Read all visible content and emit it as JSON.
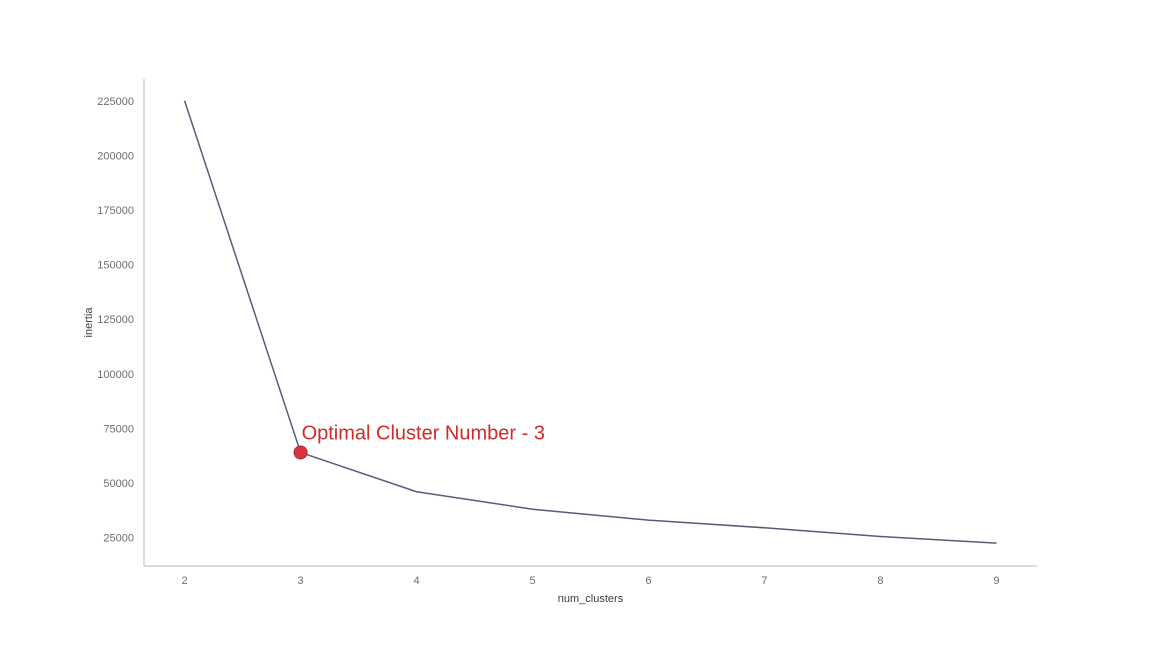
{
  "chart_data": {
    "type": "line",
    "title": "",
    "xlabel": "num_clusters",
    "ylabel": "inertia",
    "x": [
      2,
      3,
      4,
      5,
      6,
      7,
      8,
      9
    ],
    "series": [
      {
        "values": [
          225000,
          64000,
          46000,
          38000,
          33000,
          29500,
          25500,
          22500
        ]
      }
    ],
    "xlim": [
      1.65,
      9.35
    ],
    "ylim": [
      12000,
      235000
    ],
    "xticks": [
      2,
      3,
      4,
      5,
      6,
      7,
      8,
      9
    ],
    "yticks": [
      25000,
      50000,
      75000,
      100000,
      125000,
      150000,
      175000,
      200000,
      225000
    ],
    "grid": false,
    "annotation": {
      "text": "Optimal Cluster Number - 3",
      "x": 3,
      "y": 64000
    },
    "colors": {
      "line": "#5f5978",
      "marker": "#d9333f",
      "annotation": "#d12a2a",
      "axis": "#b9b9b9"
    }
  }
}
